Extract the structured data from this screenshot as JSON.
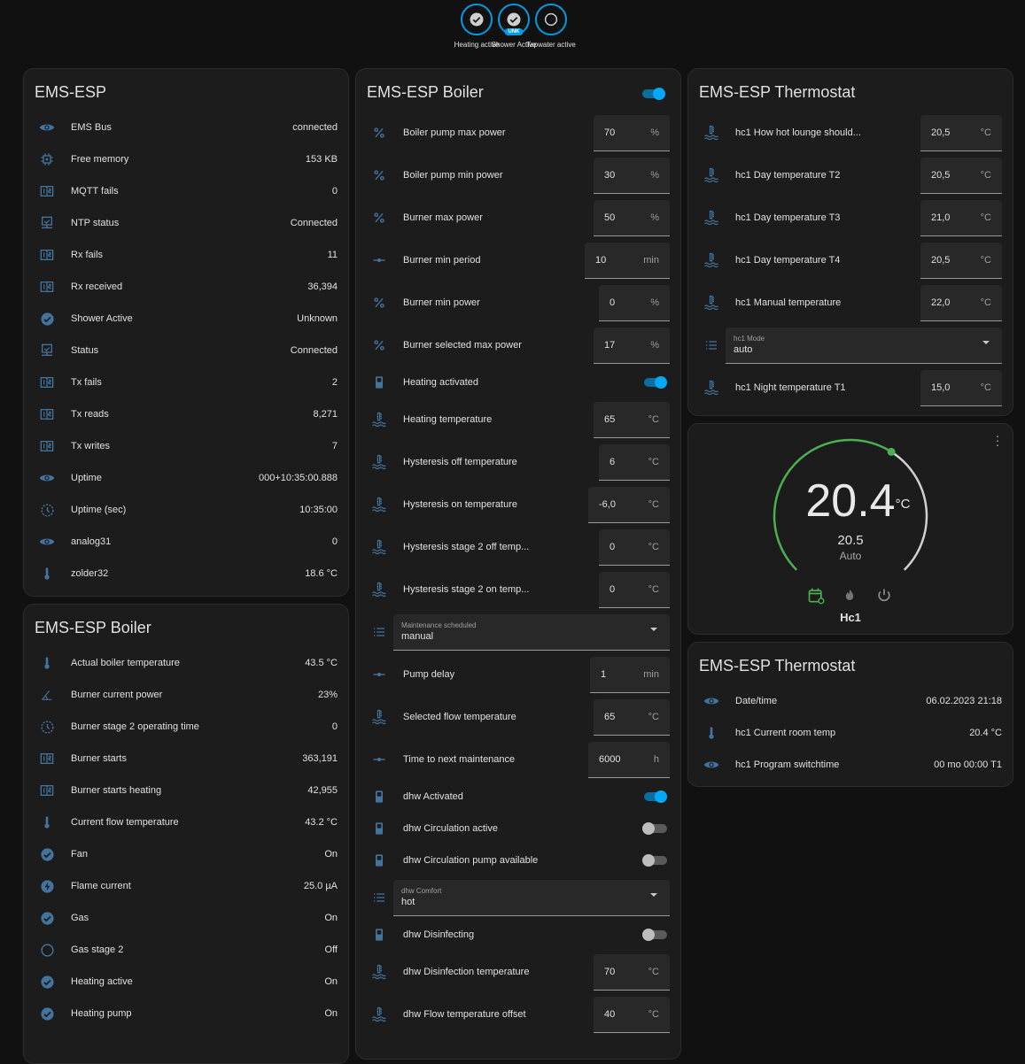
{
  "badges": [
    {
      "label": "Heating active",
      "icon": "check-circle-icon",
      "state": "on"
    },
    {
      "label": "Shower Active",
      "icon": "check-circle-icon",
      "state": "on",
      "tag": "UNK"
    },
    {
      "label": "Tapwater active",
      "icon": "circle-outline-icon",
      "state": "off"
    }
  ],
  "colors": {
    "accent": "#03a9f4",
    "icon": "#44739e",
    "heat": "#4caf50",
    "background": "#111111",
    "card": "#1c1c1c"
  },
  "cards": {
    "esp": {
      "title": "EMS-ESP",
      "rows": [
        {
          "type": "entity",
          "icon": "eye",
          "label": "EMS Bus",
          "value": "connected"
        },
        {
          "type": "entity",
          "icon": "chip",
          "label": "Free memory",
          "value": "153 KB"
        },
        {
          "type": "entity",
          "icon": "counter",
          "label": "MQTT fails",
          "value": "0"
        },
        {
          "type": "entity",
          "icon": "monitor",
          "label": "NTP status",
          "value": "Connected"
        },
        {
          "type": "entity",
          "icon": "counter",
          "label": "Rx fails",
          "value": "11"
        },
        {
          "type": "entity",
          "icon": "counter",
          "label": "Rx received",
          "value": "36,394"
        },
        {
          "type": "entity",
          "icon": "check",
          "label": "Shower Active",
          "value": "Unknown"
        },
        {
          "type": "entity",
          "icon": "monitor",
          "label": "Status",
          "value": "Connected"
        },
        {
          "type": "entity",
          "icon": "counter",
          "label": "Tx fails",
          "value": "2"
        },
        {
          "type": "entity",
          "icon": "counter",
          "label": "Tx reads",
          "value": "8,271"
        },
        {
          "type": "entity",
          "icon": "counter",
          "label": "Tx writes",
          "value": "7"
        },
        {
          "type": "entity",
          "icon": "eye",
          "label": "Uptime",
          "value": "000+10:35:00.888"
        },
        {
          "type": "entity",
          "icon": "clock",
          "label": "Uptime (sec)",
          "value": "10:35:00"
        },
        {
          "type": "entity",
          "icon": "eye",
          "label": "analog31",
          "value": "0"
        },
        {
          "type": "entity",
          "icon": "thermometer",
          "label": "zolder32",
          "value": "18.6 °C"
        }
      ]
    },
    "boiler_sensors": {
      "title": "EMS-ESP Boiler",
      "rows": [
        {
          "type": "entity",
          "icon": "thermometer",
          "label": "Actual boiler temperature",
          "value": "43.5 °C"
        },
        {
          "type": "entity",
          "icon": "angle",
          "label": "Burner current power",
          "value": "23%"
        },
        {
          "type": "entity",
          "icon": "clock",
          "label": "Burner stage 2 operating time",
          "value": "0"
        },
        {
          "type": "entity",
          "icon": "counter",
          "label": "Burner starts",
          "value": "363,191"
        },
        {
          "type": "entity",
          "icon": "counter",
          "label": "Burner starts heating",
          "value": "42,955"
        },
        {
          "type": "entity",
          "icon": "thermometer",
          "label": "Current flow temperature",
          "value": "43.2 °C"
        },
        {
          "type": "entity",
          "icon": "check",
          "label": "Fan",
          "value": "On"
        },
        {
          "type": "entity",
          "icon": "flash",
          "label": "Flame current",
          "value": "25.0 µA"
        },
        {
          "type": "entity",
          "icon": "check",
          "label": "Gas",
          "value": "On"
        },
        {
          "type": "entity",
          "icon": "circle",
          "label": "Gas stage 2",
          "value": "Off"
        },
        {
          "type": "entity",
          "icon": "check",
          "label": "Heating active",
          "value": "On"
        },
        {
          "type": "entity",
          "icon": "check",
          "label": "Heating pump",
          "value": "On"
        }
      ]
    },
    "boiler_controls": {
      "title": "EMS-ESP Boiler",
      "enabled": true,
      "rows": [
        {
          "type": "number",
          "icon": "percent",
          "label": "Boiler pump max power",
          "value": "70",
          "unit": "%"
        },
        {
          "type": "number",
          "icon": "percent",
          "label": "Boiler pump min power",
          "value": "30",
          "unit": "%"
        },
        {
          "type": "number",
          "icon": "percent",
          "label": "Burner max power",
          "value": "50",
          "unit": "%"
        },
        {
          "type": "number",
          "icon": "slider",
          "label": "Burner min period",
          "value": "10",
          "unit": "min"
        },
        {
          "type": "number",
          "icon": "percent",
          "label": "Burner min power",
          "value": "0",
          "unit": "%"
        },
        {
          "type": "number",
          "icon": "percent",
          "label": "Burner selected max power",
          "value": "17",
          "unit": "%"
        },
        {
          "type": "switch",
          "icon": "toggle",
          "label": "Heating activated",
          "on": true
        },
        {
          "type": "number",
          "icon": "thermo-water",
          "label": "Heating temperature",
          "value": "65",
          "unit": "°C"
        },
        {
          "type": "number",
          "icon": "thermo-water",
          "label": "Hysteresis off temperature",
          "value": "6",
          "unit": "°C"
        },
        {
          "type": "number",
          "icon": "thermo-water",
          "label": "Hysteresis on temperature",
          "value": "-6,0",
          "unit": "°C"
        },
        {
          "type": "number",
          "icon": "thermo-water",
          "label": "Hysteresis stage 2 off temp...",
          "value": "0",
          "unit": "°C"
        },
        {
          "type": "number",
          "icon": "thermo-water",
          "label": "Hysteresis stage 2 on temp...",
          "value": "0",
          "unit": "°C"
        },
        {
          "type": "select",
          "icon": "list",
          "label": "Maintenance scheduled",
          "value": "manual"
        },
        {
          "type": "number",
          "icon": "slider",
          "label": "Pump delay",
          "value": "1",
          "unit": "min"
        },
        {
          "type": "number",
          "icon": "thermo-water",
          "label": "Selected flow temperature",
          "value": "65",
          "unit": "°C"
        },
        {
          "type": "number",
          "icon": "slider",
          "label": "Time to next maintenance",
          "value": "6000",
          "unit": "h"
        },
        {
          "type": "switch",
          "icon": "toggle",
          "label": "dhw Activated",
          "on": true
        },
        {
          "type": "switch",
          "icon": "toggle",
          "label": "dhw Circulation active",
          "on": false
        },
        {
          "type": "switch",
          "icon": "toggle",
          "label": "dhw Circulation pump available",
          "on": false
        },
        {
          "type": "select",
          "icon": "list",
          "label": "dhw Comfort",
          "value": "hot"
        },
        {
          "type": "switch",
          "icon": "toggle",
          "label": "dhw Disinfecting",
          "on": false
        },
        {
          "type": "number",
          "icon": "thermo-water",
          "label": "dhw Disinfection temperature",
          "value": "70",
          "unit": "°C"
        },
        {
          "type": "number",
          "icon": "thermo-water",
          "label": "dhw Flow temperature offset",
          "value": "40",
          "unit": "°C"
        }
      ]
    },
    "thermostat_controls": {
      "title": "EMS-ESP Thermostat",
      "rows": [
        {
          "type": "number",
          "icon": "thermo-water",
          "label": "hc1 How hot lounge should...",
          "value": "20,5",
          "unit": "°C"
        },
        {
          "type": "number",
          "icon": "thermo-water",
          "label": "hc1 Day temperature T2",
          "value": "20,5",
          "unit": "°C"
        },
        {
          "type": "number",
          "icon": "thermo-water",
          "label": "hc1 Day temperature T3",
          "value": "21,0",
          "unit": "°C"
        },
        {
          "type": "number",
          "icon": "thermo-water",
          "label": "hc1 Day temperature T4",
          "value": "20,5",
          "unit": "°C"
        },
        {
          "type": "number",
          "icon": "thermo-water",
          "label": "hc1 Manual temperature",
          "value": "22,0",
          "unit": "°C"
        },
        {
          "type": "select",
          "icon": "list",
          "label": "hc1 Mode",
          "value": "auto"
        },
        {
          "type": "number",
          "icon": "thermo-water",
          "label": "hc1 Night temperature T1",
          "value": "15,0",
          "unit": "°C"
        }
      ]
    },
    "thermostat": {
      "name": "Hc1",
      "current": "20.4",
      "unit": "°C",
      "target": "20.5",
      "mode": "Auto",
      "target_value": 20.5,
      "active_mode": "auto"
    },
    "thermostat_sensors": {
      "title": "EMS-ESP Thermostat",
      "rows": [
        {
          "type": "entity",
          "icon": "eye",
          "label": "Date/time",
          "value": "06.02.2023 21:18"
        },
        {
          "type": "entity",
          "icon": "thermometer",
          "label": "hc1 Current room temp",
          "value": "20.4 °C"
        },
        {
          "type": "entity",
          "icon": "eye",
          "label": "hc1 Program switchtime",
          "value": "00 mo 00:00 T1"
        }
      ]
    }
  }
}
